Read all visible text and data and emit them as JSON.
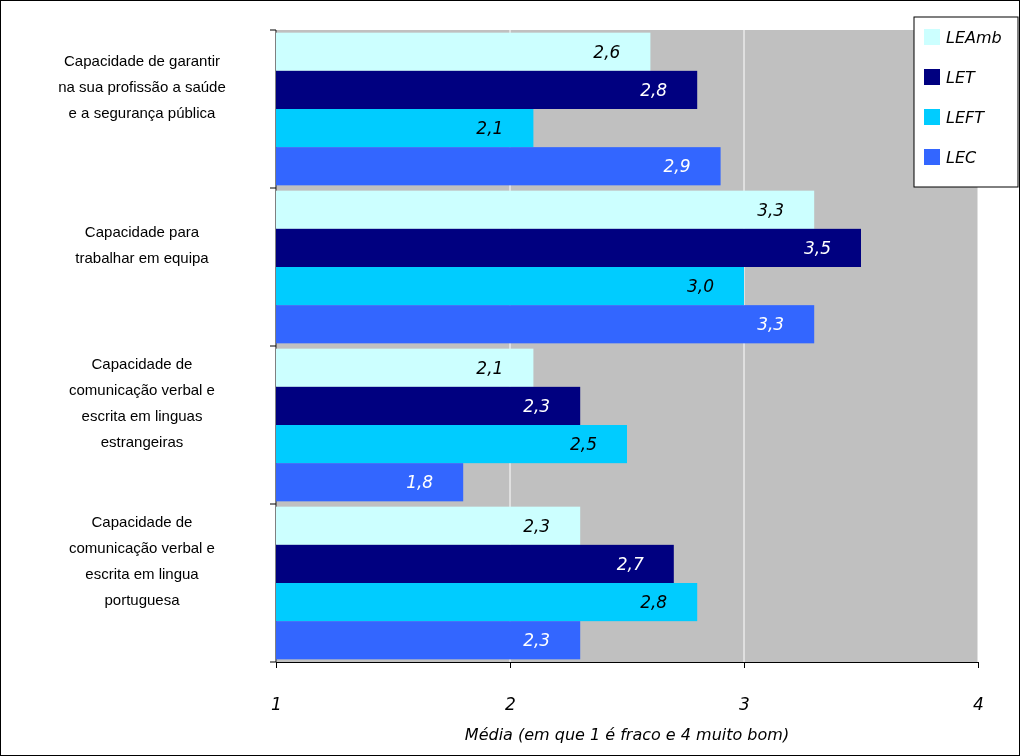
{
  "chart_data": {
    "type": "bar",
    "orientation": "horizontal",
    "xlabel": "Média (em que 1 é fraco e 4 muito bom)",
    "categories": [
      "Capacidade de garantir na sua profissão a saúde e a segurança pública",
      "Capacidade para trabalhar em equipa",
      "Capacidade de comunicação verbal e escrita em linguas estrangeiras",
      "Capacidade de comunicação verbal e escrita em lingua portuguesa"
    ],
    "series": [
      {
        "name": "LEAmb",
        "color": "#ccffff",
        "values": [
          2.6,
          3.3,
          2.1,
          2.3
        ],
        "value_labels": [
          "2,6",
          "3,3",
          "2,1",
          "2,3"
        ]
      },
      {
        "name": "LET",
        "color": "#000080",
        "values": [
          2.8,
          3.5,
          2.3,
          2.7
        ],
        "value_labels": [
          "2,8",
          "3,5",
          "2,3",
          "2,7"
        ]
      },
      {
        "name": "LEFT",
        "color": "#00ccff",
        "values": [
          2.1,
          3.0,
          2.5,
          2.8
        ],
        "value_labels": [
          "2,1",
          "3,0",
          "2,5",
          "2,8"
        ]
      },
      {
        "name": "LEC",
        "color": "#3366ff",
        "values": [
          2.9,
          3.3,
          1.8,
          2.3
        ],
        "value_labels": [
          "2,9",
          "3,3",
          "1,8",
          "2,3"
        ]
      }
    ],
    "xlim": [
      1,
      4
    ],
    "xticks": [
      1,
      2,
      3,
      4
    ],
    "grid": "x",
    "legend": "top right"
  }
}
